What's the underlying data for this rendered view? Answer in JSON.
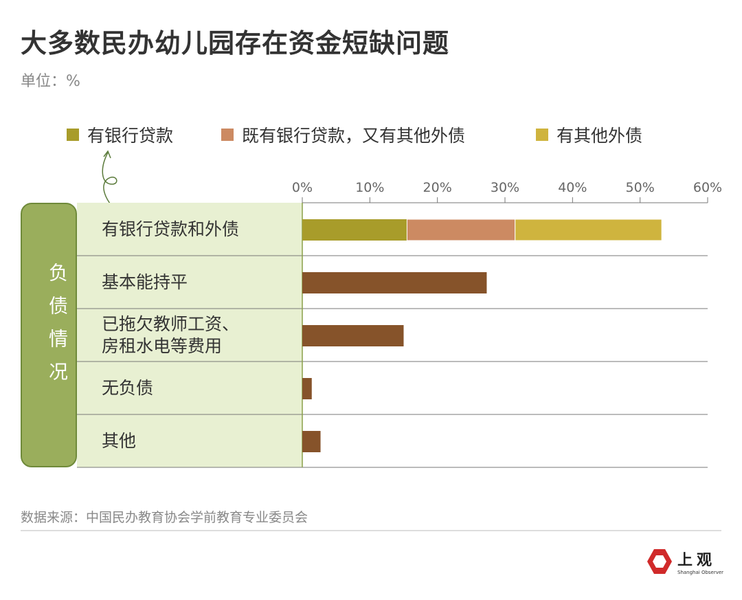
{
  "title": "大多数民办幼儿园存在资金短缺问题",
  "unit": "单位：%",
  "footer": "数据来源：中国民办教育协会学前教育专业委员会",
  "logo": {
    "cn": "上观",
    "en": "Shanghai Observer"
  },
  "colors": {
    "bank": "#a89c2a",
    "both": "#cc8a62",
    "other": "#cfb43e",
    "single": "#86532a"
  },
  "chart_data": {
    "type": "bar",
    "title": "大多数民办幼儿园存在资金短缺问题",
    "group_label": "负债情况",
    "xlim": [
      0,
      60
    ],
    "ticks": [
      "0%",
      "10%",
      "20%",
      "30%",
      "40%",
      "50%",
      "60%"
    ],
    "legend": [
      "有银行贷款",
      "既有银行贷款，又有其他外债",
      "有其他外债"
    ],
    "categories": [
      "有银行贷款和外债",
      "基本能持平",
      "已拖欠教师工资、房租水电等费用",
      "无负债",
      "其他"
    ],
    "category_lines": [
      [
        "有银行贷款和外债"
      ],
      [
        "基本能持平"
      ],
      [
        "已拖欠教师工资、",
        "房租水电等费用"
      ],
      [
        "无负债"
      ],
      [
        "其他"
      ]
    ],
    "stacked": [
      15.5,
      16.0,
      21.7
    ],
    "values": [
      53.2,
      27.3,
      15.0,
      1.4,
      2.7
    ]
  }
}
